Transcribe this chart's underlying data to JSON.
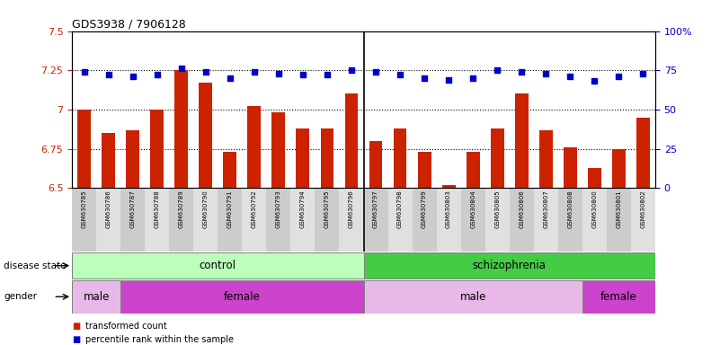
{
  "title": "GDS3938 / 7906128",
  "samples": [
    "GSM630785",
    "GSM630786",
    "GSM630787",
    "GSM630788",
    "GSM630789",
    "GSM630790",
    "GSM630791",
    "GSM630792",
    "GSM630793",
    "GSM630794",
    "GSM630795",
    "GSM630796",
    "GSM630797",
    "GSM630798",
    "GSM630799",
    "GSM630803",
    "GSM630804",
    "GSM630805",
    "GSM630806",
    "GSM630807",
    "GSM630808",
    "GSM630800",
    "GSM630801",
    "GSM630802"
  ],
  "bar_values": [
    7.0,
    6.85,
    6.87,
    7.0,
    7.25,
    7.17,
    6.73,
    7.02,
    6.98,
    6.88,
    6.88,
    7.1,
    6.8,
    6.88,
    6.73,
    6.52,
    6.73,
    6.88,
    7.1,
    6.87,
    6.76,
    6.63,
    6.75,
    6.95
  ],
  "dot_values": [
    74,
    72,
    71,
    72,
    76,
    74,
    70,
    74,
    73,
    72,
    72,
    75,
    74,
    72,
    70,
    69,
    70,
    75,
    74,
    73,
    71,
    68,
    71,
    73
  ],
  "bar_color": "#cc2200",
  "dot_color": "#0000cc",
  "ylim_left": [
    6.5,
    7.5
  ],
  "ylim_right": [
    0,
    100
  ],
  "yticks_left": [
    6.5,
    6.75,
    7.0,
    7.25,
    7.5
  ],
  "yticks_right": [
    0,
    25,
    50,
    75,
    100
  ],
  "ytick_labels_left": [
    "6.5",
    "6.75",
    "7",
    "7.25",
    "7.5"
  ],
  "ytick_labels_right": [
    "0",
    "25",
    "50",
    "75",
    "100%"
  ],
  "hlines": [
    6.75,
    7.0,
    7.25
  ],
  "separator_index": 11,
  "control_range": [
    0,
    11
  ],
  "schiz_range": [
    12,
    23
  ],
  "gender_groups": [
    {
      "label": "male",
      "start": 0,
      "end": 1,
      "type": "light"
    },
    {
      "label": "female",
      "start": 2,
      "end": 11,
      "type": "dark"
    },
    {
      "label": "male",
      "start": 12,
      "end": 20,
      "type": "light"
    },
    {
      "label": "female",
      "start": 21,
      "end": 23,
      "type": "dark"
    }
  ],
  "disease_color_control": "#bbffbb",
  "disease_color_schizophrenia": "#44cc44",
  "male_color_light": "#e8b8e8",
  "female_color_dark": "#cc44cc",
  "legend_items": [
    {
      "label": "transformed count",
      "color": "#cc2200"
    },
    {
      "label": "percentile rank within the sample",
      "color": "#0000cc"
    }
  ],
  "label_disease": "disease state",
  "label_gender": "gender",
  "bar_width": 0.55,
  "background_color": "#ffffff",
  "stripe_colors": [
    "#cccccc",
    "#e0e0e0"
  ],
  "n_samples": 24
}
